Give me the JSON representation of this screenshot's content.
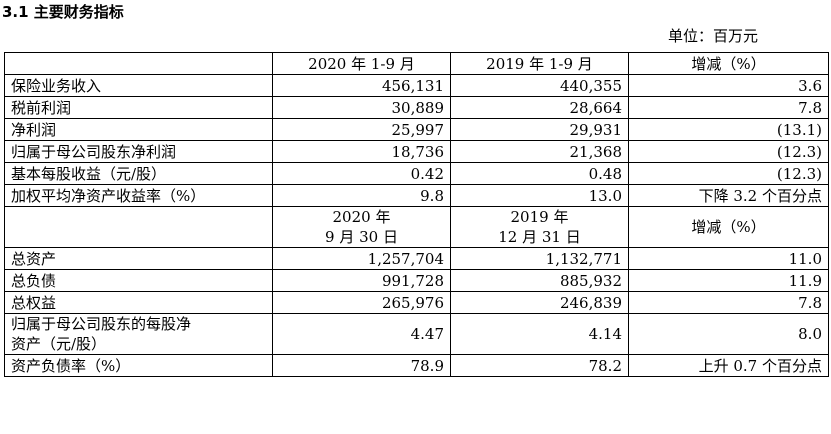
{
  "section_title": "3.1 主要财务指标",
  "unit": "单位：百万元",
  "period_header": {
    "col1": "2020 年 1-9 月",
    "col2": "2019 年 1-9 月",
    "col3": "增减（%）"
  },
  "period_rows": [
    {
      "label": "保险业务收入",
      "v1": "456,131",
      "v2": "440,355",
      "change": "3.6"
    },
    {
      "label": "税前利润",
      "v1": "30,889",
      "v2": "28,664",
      "change": "7.8"
    },
    {
      "label": "净利润",
      "v1": "25,997",
      "v2": "29,931",
      "change": "(13.1)"
    },
    {
      "label": "归属于母公司股东净利润",
      "v1": "18,736",
      "v2": "21,368",
      "change": "(12.3)"
    },
    {
      "label": "基本每股收益（元/股）",
      "v1": "0.42",
      "v2": "0.48",
      "change": "(12.3)"
    },
    {
      "label": "加权平均净资产收益率（%）",
      "v1": "9.8",
      "v2": "13.0",
      "change": "下降 3.2 个百分点"
    }
  ],
  "point_header": {
    "col1_line1": "2020 年",
    "col1_line2": "9 月 30 日",
    "col2_line1": "2019 年",
    "col2_line2": "12 月 31 日",
    "col3": "增减（%）"
  },
  "point_rows": [
    {
      "label": "总资产",
      "v1": "1,257,704",
      "v2": "1,132,771",
      "change": "11.0"
    },
    {
      "label": "总负债",
      "v1": "991,728",
      "v2": "885,932",
      "change": "11.9"
    },
    {
      "label": "总权益",
      "v1": "265,976",
      "v2": "246,839",
      "change": "7.8"
    }
  ],
  "bvps_row": {
    "label_line1": "归属于母公司股东的每股净",
    "label_line2": "资产（元/股）",
    "v1": "4.47",
    "v2": "4.14",
    "change": "8.0"
  },
  "leverage_row": {
    "label": "资产负债率（%）",
    "v1": "78.9",
    "v2": "78.2",
    "change": "上升 0.7 个百分点"
  }
}
